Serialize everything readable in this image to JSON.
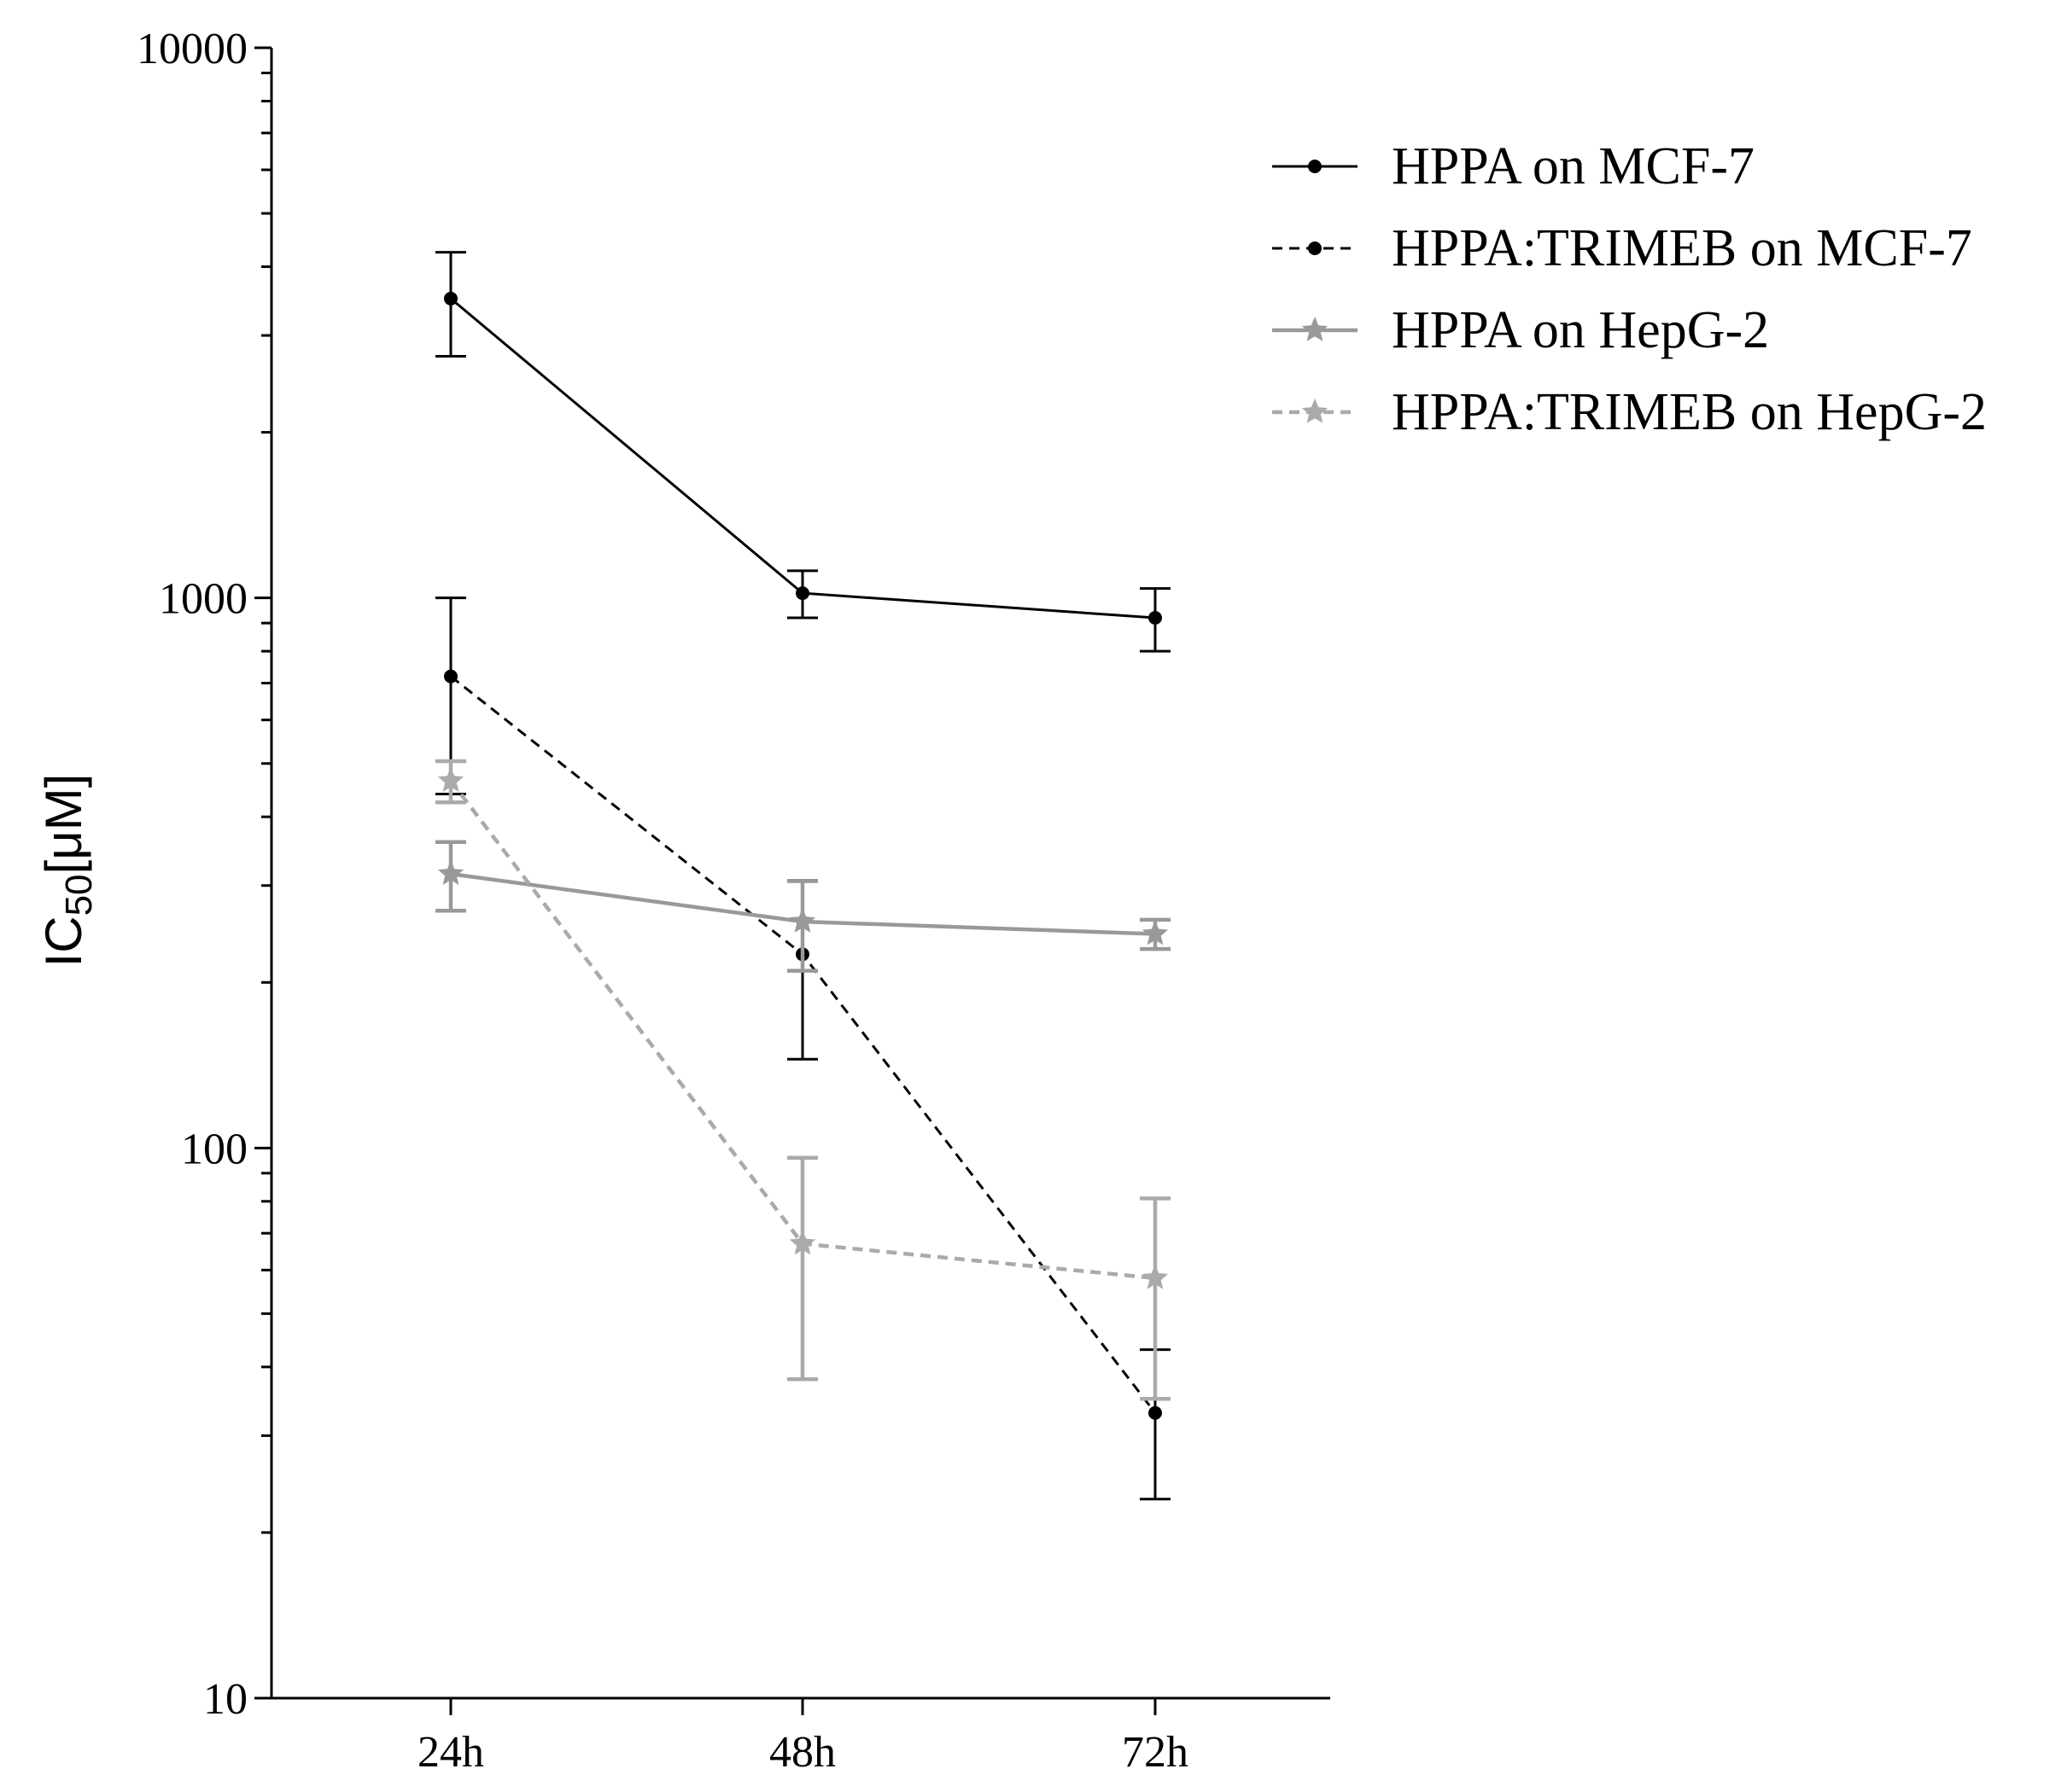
{
  "chart_data": {
    "type": "line",
    "categories": [
      "24h",
      "48h",
      "72h"
    ],
    "ylabel": "IC50[μM]",
    "ylabel_main": "IC",
    "ylabel_sub": "50",
    "ylabel_unit": "[μM]",
    "yscale": "log",
    "ylim": [
      10,
      10000
    ],
    "yticks": [
      "10",
      "100",
      "1000",
      "10000"
    ],
    "grid": false,
    "legend_position": "top-right",
    "series": [
      {
        "name": "HPPA on MCF-7",
        "values": [
          3500,
          1020,
          920
        ],
        "err_low": [
          2750,
          920,
          800
        ],
        "err_high": [
          4250,
          1120,
          1040
        ],
        "color": "#000000",
        "dashed": false,
        "marker": "circle"
      },
      {
        "name": "HPPA:TRIMEB on MCF-7",
        "values": [
          720,
          225,
          33
        ],
        "err_low": [
          440,
          145,
          23
        ],
        "err_high": [
          1000,
          305,
          43
        ],
        "color": "#000000",
        "dashed": true,
        "marker": "circle"
      },
      {
        "name": "HPPA on HepG-2",
        "values": [
          315,
          258,
          245
        ],
        "err_low": [
          270,
          210,
          230
        ],
        "err_high": [
          360,
          306,
          260
        ],
        "color": "#999999",
        "dashed": false,
        "marker": "star"
      },
      {
        "name": "HPPA:TRIMEB on HepG-2",
        "values": [
          465,
          67,
          58
        ],
        "err_low": [
          425,
          38,
          35
        ],
        "err_high": [
          505,
          96,
          81
        ],
        "color": "#aaaaaa",
        "dashed": true,
        "marker": "star"
      }
    ]
  }
}
